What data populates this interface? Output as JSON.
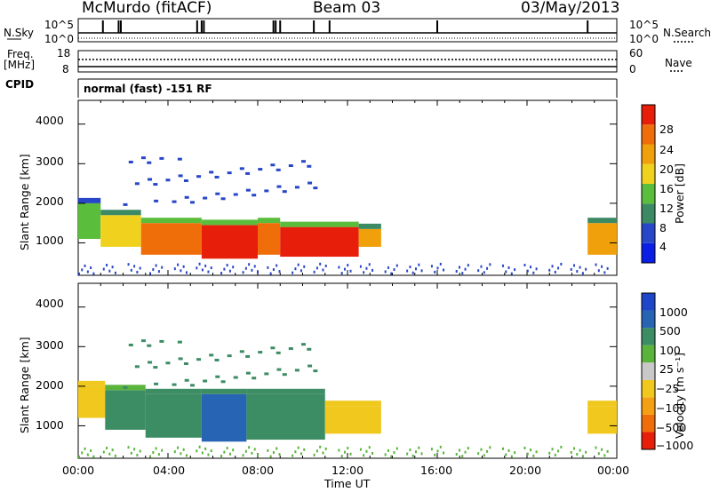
{
  "header": {
    "title": "McMurdo (fitACF)",
    "beam": "Beam 03",
    "date": "03/May/2013"
  },
  "top_panels": {
    "nsky_label": "N.Sky",
    "nsearch_label": "N.Search",
    "noise_ticks_left": [
      "10^5",
      "10^0"
    ],
    "noise_ticks_right": [
      "10^5",
      "10^0"
    ],
    "freq_label_1": "Freq.",
    "freq_label_2": "[MHz]",
    "freq_ticks": [
      "18",
      "8"
    ],
    "nave_label": "Nave",
    "nave_ticks": [
      "60",
      "0"
    ],
    "cpid_label": "CPID",
    "cpid_text": "normal (fast) -151 RF"
  },
  "colors": {
    "power_scale": [
      "#0a1ee6",
      "#2846c8",
      "#3c8a64",
      "#5abe3c",
      "#f0d21e",
      "#f0a00a",
      "#f06e0a",
      "#e61e0a"
    ],
    "velocity_scale": [
      "#e61e0a",
      "#f06e0a",
      "#f5a014",
      "#f0c81e",
      "#c8c8c8",
      "#5ab43c",
      "#3c8c64",
      "#2864b4",
      "#1e46c8"
    ]
  },
  "chart_data": [
    {
      "type": "heatmap",
      "name": "power",
      "ylabel": "Slant Range [km]",
      "xlabel": "",
      "colorbar_label": "Power [dB]",
      "colorbar_ticks": [
        "28",
        "24",
        "20",
        "16",
        "12",
        "8",
        "4"
      ],
      "yticks": [
        "4000",
        "3000",
        "2000",
        "1000"
      ],
      "ylim": [
        180,
        4600
      ],
      "xlim": [
        0,
        24
      ],
      "bands": [
        {
          "t0": 0.0,
          "t1": 1.0,
          "r0": 1100,
          "r1": 2000,
          "level": 12
        },
        {
          "t0": 1.0,
          "t1": 2.8,
          "r0": 900,
          "r1": 1700,
          "level": 16
        },
        {
          "t0": 2.8,
          "t1": 5.5,
          "r0": 700,
          "r1": 1500,
          "level": 26
        },
        {
          "t0": 5.5,
          "t1": 8.0,
          "r0": 600,
          "r1": 1450,
          "level": 28
        },
        {
          "t0": 8.0,
          "t1": 9.0,
          "r0": 700,
          "r1": 1500,
          "level": 24
        },
        {
          "t0": 9.0,
          "t1": 12.5,
          "r0": 650,
          "r1": 1400,
          "level": 28
        },
        {
          "t0": 12.5,
          "t1": 13.5,
          "r0": 900,
          "r1": 1350,
          "level": 20
        },
        {
          "t0": 22.7,
          "t1": 24.0,
          "r0": 700,
          "r1": 1500,
          "level": 22
        }
      ]
    },
    {
      "type": "heatmap",
      "name": "velocity",
      "ylabel": "Slant Range [km]",
      "xlabel": "Time UT",
      "colorbar_label": "Velocity [m s⁻¹]",
      "colorbar_ticks": [
        "1000",
        "500",
        "100",
        "25",
        "−25",
        "−100",
        "−500",
        "−1000"
      ],
      "yticks": [
        "4000",
        "3000",
        "2000",
        "1000"
      ],
      "xticks": [
        "00:00",
        "04:00",
        "08:00",
        "12:00",
        "16:00",
        "20:00",
        "00:00"
      ],
      "ylim": [
        180,
        4600
      ],
      "xlim": [
        0,
        24
      ],
      "bands": [
        {
          "t0": 0.0,
          "t1": 1.2,
          "r0": 1200,
          "r1": 2000,
          "level": -100
        },
        {
          "t0": 1.2,
          "t1": 3.0,
          "r0": 900,
          "r1": 1900,
          "level": 100
        },
        {
          "t0": 3.0,
          "t1": 5.5,
          "r0": 700,
          "r1": 1800,
          "level": 300
        },
        {
          "t0": 5.5,
          "t1": 7.5,
          "r0": 600,
          "r1": 1800,
          "level": 800
        },
        {
          "t0": 7.5,
          "t1": 11.0,
          "r0": 650,
          "r1": 1800,
          "level": 200
        },
        {
          "t0": 11.0,
          "t1": 13.5,
          "r0": 800,
          "r1": 1500,
          "level": -100
        },
        {
          "t0": 22.7,
          "t1": 24.0,
          "r0": 800,
          "r1": 1500,
          "level": -100
        }
      ]
    }
  ]
}
